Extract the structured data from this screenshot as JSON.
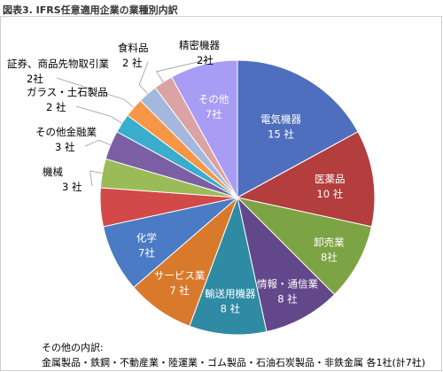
{
  "figure_title": "図表3. IFRS任意適用企業の業種別内訳",
  "chart_data": {
    "type": "pie",
    "start": "12 o'clock",
    "direction": "clockwise",
    "slices": [
      {
        "label": "電気機器",
        "value": 15,
        "value_label": "15 社",
        "color": "#4f6fbe",
        "text_color": "#ffffff"
      },
      {
        "label": "医薬品",
        "value": 10,
        "value_label": "10 社",
        "color": "#b43d3d",
        "text_color": "#ffffff"
      },
      {
        "label": "卸売業",
        "value": 8,
        "value_label": "8社",
        "color": "#7da444",
        "text_color": "#ffffff"
      },
      {
        "label": "情報・通信業",
        "value": 8,
        "value_label": "8 社",
        "color": "#62478a",
        "text_color": "#ffffff"
      },
      {
        "label": "輸送用機器",
        "value": 8,
        "value_label": "8 社",
        "color": "#2f8aa4",
        "text_color": "#ffffff"
      },
      {
        "label": "サービス業",
        "value": 7,
        "value_label": "7 社",
        "color": "#d9792c",
        "text_color": "#ffffff"
      },
      {
        "label": "化学",
        "value": 7,
        "value_label": "7社",
        "color": "#4a7bc4",
        "text_color": "#ffffff"
      },
      {
        "label": "その他",
        "value": 4,
        "value_label": "",
        "color": "#d34848",
        "text_color": "#ffffff"
      },
      {
        "label": "機械",
        "value": 3,
        "value_label": "3 社",
        "color": "#9bbb59",
        "text_color": "#000000"
      },
      {
        "label": "その他金融業",
        "value": 3,
        "value_label": "3 社",
        "color": "#7a5fa5",
        "text_color": "#000000"
      },
      {
        "label": "ガラス・土石製品",
        "value": 2,
        "value_label": "2 社",
        "color": "#3aaccc",
        "text_color": "#000000"
      },
      {
        "label": "証券、商品先物取引業",
        "value": 2,
        "value_label": "2社",
        "color": "#f79646",
        "text_color": "#000000"
      },
      {
        "label": "食料品",
        "value": 2,
        "value_label": "2 社",
        "color": "#a3b8dc",
        "text_color": "#000000"
      },
      {
        "label": "精密機器",
        "value": 2,
        "value_label": "2社",
        "color": "#dba3a3",
        "text_color": "#000000"
      },
      {
        "label": "その他",
        "value": 7,
        "value_label": "7社",
        "color": "#a89cf4",
        "text_color": "#ffffff"
      }
    ]
  },
  "footnote": {
    "title": "その他の内訳:",
    "body": "金属製品・鉄鋼・不動産業・陸運業・ゴム製品・石油石炭製品・非鉄金属  各1社(計7社)"
  }
}
